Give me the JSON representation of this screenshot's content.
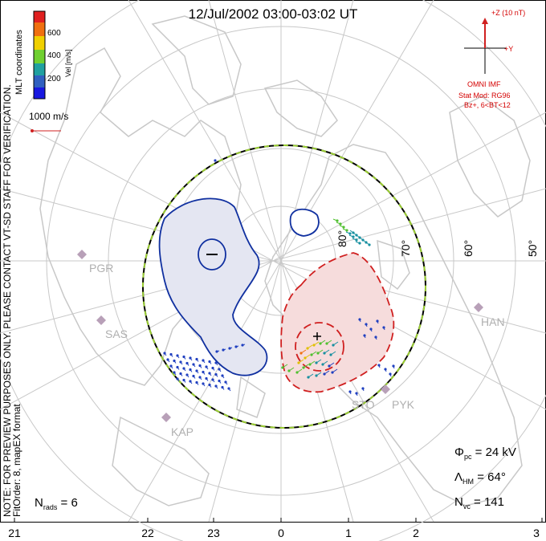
{
  "title": "12/Jul/2002 03:00-03:02 UT",
  "colorbar": {
    "label": "Vel [m/s]",
    "ticks": [
      "600",
      "400",
      "200"
    ],
    "colors": [
      "#e02020",
      "#f07010",
      "#f0d000",
      "#70d030",
      "#20a0a0",
      "#3060c0",
      "#1818e0"
    ]
  },
  "coordinates_label": "MLT coordinates",
  "vector_scale_label": "1000 m/s",
  "disclaimer": "NOTE: FOR PREVIEW PURPOSES ONLY. PLEASE CONTACT VT-SD STAFF FOR VERIFICATION.",
  "fitorder": "FitOrder: 8, mapEX format",
  "imf": {
    "z_label": "+Z (10 nT)",
    "y_label": "+Y",
    "source": "OMNI IMF",
    "stat_mod": "Stat Mod: RG96",
    "bins": "Bz+, 6<BT<12"
  },
  "latitude_labels": [
    "80°",
    "70°",
    "60°",
    "50°"
  ],
  "mlt_labels": [
    "21",
    "22",
    "23",
    "0",
    "1",
    "2",
    "3"
  ],
  "stats": {
    "phi_pc": {
      "symbol": "Φ",
      "sub": "pc",
      "value": "= 24 kV"
    },
    "lambda_hm": {
      "symbol": "Λ",
      "sub": "HM",
      "value": "= 64°"
    },
    "n_vc": {
      "symbol": "N",
      "sub": "vc",
      "value": "= 141"
    },
    "n_rads": {
      "symbol": "N",
      "sub": "rads",
      "value": "= 6"
    }
  },
  "radars": [
    "PGR",
    "SAS",
    "KAP",
    "HAN",
    "STO",
    "PYK"
  ],
  "contours": {
    "negative_center": "–",
    "positive_center": "+"
  },
  "colors": {
    "coast": "#c8c8c8",
    "grid": "#c0c0c0",
    "negative": "#1030a0",
    "negative_fill": "#e4e6f2",
    "positive": "#d02020",
    "positive_fill": "#f6dcdc",
    "boundary_dash": "#9acd32"
  }
}
